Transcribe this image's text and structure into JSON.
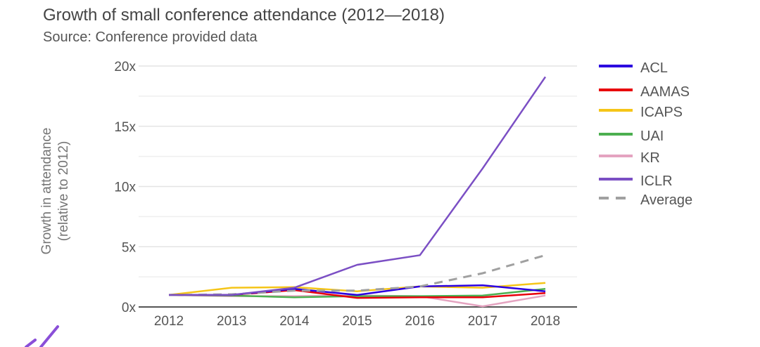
{
  "chart_data": {
    "type": "line",
    "title": "Growth of small conference attendance (2012—2018)",
    "subtitle": "Source: Conference provided data",
    "xlabel": "",
    "ylabel": "Growth in attendance",
    "ylabel_line2": "(relative to 2012)",
    "x": [
      "2012",
      "2013",
      "2014",
      "2015",
      "2016",
      "2017",
      "2018"
    ],
    "ylim": [
      0,
      20
    ],
    "yticks": [
      0,
      5,
      10,
      15,
      20
    ],
    "ytick_labels": [
      "0x",
      "5x",
      "10x",
      "15x",
      "20x"
    ],
    "minor_gridlines": [
      2.5,
      7.5,
      12.5,
      17.5
    ],
    "grid": true,
    "legend_position": "right",
    "series": [
      {
        "name": "ACL",
        "color": "#2b00e0",
        "dashed": false,
        "values": [
          1,
          1,
          1.5,
          1.0,
          1.7,
          1.8,
          1.3
        ]
      },
      {
        "name": "AAMAS",
        "color": "#e8000b",
        "dashed": false,
        "values": [
          1,
          1,
          1.4,
          0.75,
          0.8,
          0.8,
          1.15
        ]
      },
      {
        "name": "ICAPS",
        "color": "#f5c518",
        "dashed": false,
        "values": [
          1,
          1.6,
          1.65,
          1.3,
          1.7,
          1.6,
          2.0
        ]
      },
      {
        "name": "UAI",
        "color": "#4caf50",
        "dashed": false,
        "values": [
          1,
          0.95,
          0.8,
          0.9,
          0.9,
          0.95,
          1.5
        ]
      },
      {
        "name": "KR",
        "color": "#e4a3c0",
        "dashed": false,
        "values": [
          1,
          0.9,
          0.9,
          0.95,
          0.9,
          0.05,
          0.95
        ]
      },
      {
        "name": "ICLR",
        "color": "#7b4fc4",
        "dashed": false,
        "values": [
          1,
          1,
          1.6,
          3.5,
          4.3,
          11.5,
          19.1
        ]
      },
      {
        "name": "Average",
        "color": "#a0a0a0",
        "dashed": true,
        "values": [
          1,
          1.05,
          1.35,
          1.35,
          1.7,
          2.8,
          4.3
        ]
      }
    ]
  },
  "decoration": {
    "color": "#8a4fd8"
  }
}
